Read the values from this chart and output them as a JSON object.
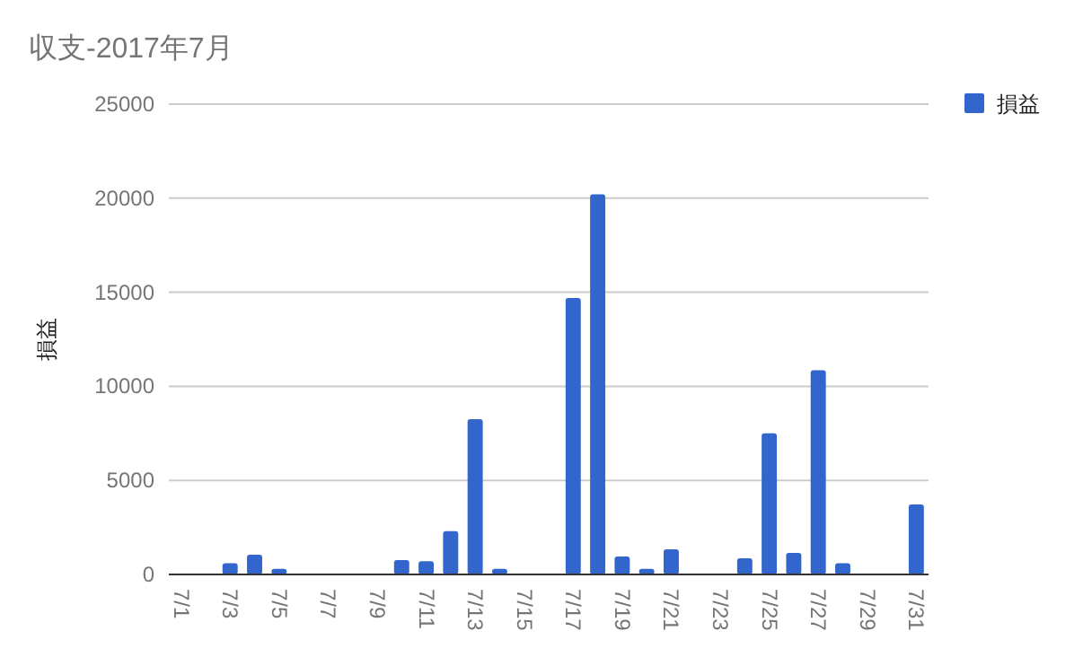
{
  "chart_data": {
    "type": "bar",
    "title": "収支-2017年7月",
    "ylabel": "損益",
    "categories": [
      "7/1",
      null,
      "7/3",
      null,
      "7/5",
      null,
      "7/7",
      null,
      "7/9",
      null,
      "7/11",
      null,
      "7/13",
      null,
      "7/15",
      null,
      "7/17",
      null,
      "7/19",
      null,
      "7/21",
      null,
      "7/23",
      null,
      "7/25",
      null,
      "7/27",
      null,
      "7/29",
      null,
      "7/31"
    ],
    "series": [
      {
        "name": "損益",
        "color": "#3366cc",
        "values": [
          0,
          0,
          600,
          1050,
          300,
          0,
          0,
          0,
          0,
          760,
          700,
          2300,
          8250,
          300,
          0,
          0,
          14700,
          20200,
          950,
          300,
          1330,
          0,
          0,
          860,
          7500,
          1150,
          10850,
          600,
          0,
          0,
          3720
        ]
      }
    ],
    "ylim": [
      0,
      25000
    ],
    "yticks": [
      0,
      5000,
      10000,
      15000,
      20000,
      25000
    ],
    "grid": "y",
    "legend": "top right"
  }
}
